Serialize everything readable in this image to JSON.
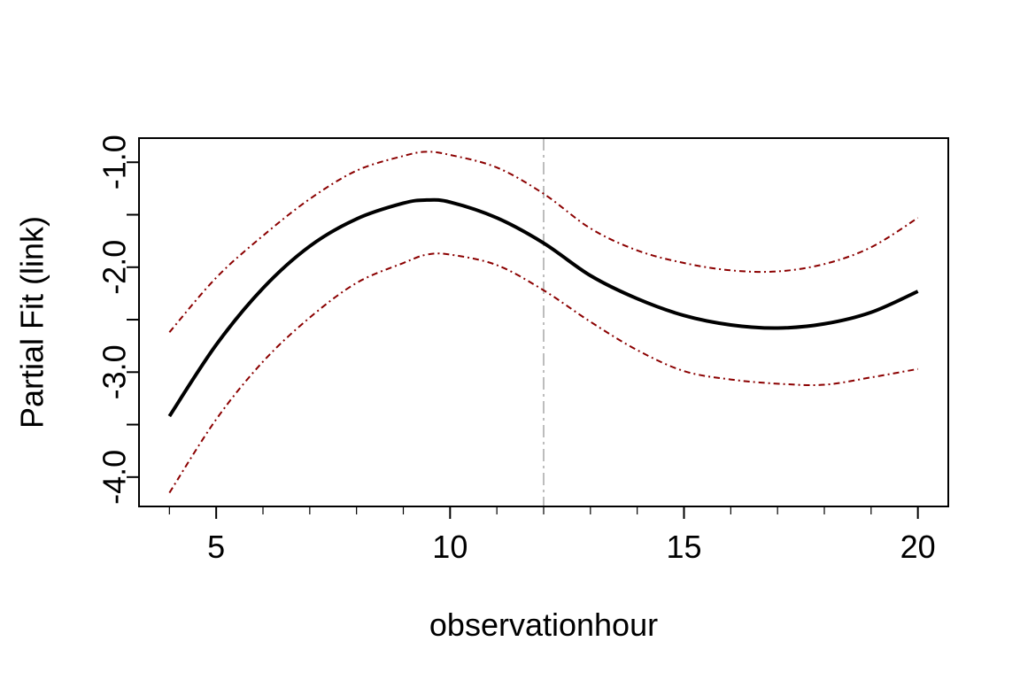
{
  "chart_data": {
    "type": "line",
    "title": "",
    "xlabel": "observationhour",
    "ylabel": "Partial Fit (link)",
    "xlim": [
      3.35,
      20.65
    ],
    "ylim": [
      -4.28,
      -0.77
    ],
    "x_ticks_major": [
      5,
      10,
      15,
      20
    ],
    "x_tick_labels": [
      "5",
      "10",
      "15",
      "20"
    ],
    "x_ticks_minor": [
      4,
      6,
      7,
      8,
      9,
      11,
      12,
      13,
      14,
      16,
      17,
      18,
      19
    ],
    "y_ticks": [
      -4.0,
      -3.5,
      -3.0,
      -2.5,
      -2.0,
      -1.5,
      -1.0
    ],
    "y_tick_labels": [
      "-4.0",
      "",
      "-3.0",
      "",
      "-2.0",
      "",
      "-1.0"
    ],
    "reference_line": {
      "x": 12,
      "color": "#bdbdbd",
      "style": "dash-dot"
    },
    "grid": false,
    "series": [
      {
        "role": "fit",
        "color": "#000000",
        "style": "solid",
        "x": [
          4,
          5,
          6,
          7,
          8,
          9,
          9.5,
          10,
          11,
          12,
          13,
          14,
          15,
          16,
          17,
          18,
          19,
          20
        ],
        "y": [
          -3.42,
          -2.74,
          -2.2,
          -1.8,
          -1.54,
          -1.39,
          -1.36,
          -1.38,
          -1.53,
          -1.77,
          -2.08,
          -2.3,
          -2.46,
          -2.55,
          -2.58,
          -2.54,
          -2.43,
          -2.23
        ]
      },
      {
        "role": "upper",
        "color": "#8b0000",
        "style": "dash-dot",
        "x": [
          4,
          5,
          6,
          7,
          8,
          9,
          9.5,
          10,
          11,
          12,
          13,
          14,
          15,
          16,
          17,
          18,
          19,
          20
        ],
        "y": [
          -2.62,
          -2.1,
          -1.7,
          -1.35,
          -1.08,
          -0.94,
          -0.9,
          -0.93,
          -1.05,
          -1.3,
          -1.63,
          -1.84,
          -1.96,
          -2.03,
          -2.04,
          -1.97,
          -1.81,
          -1.53
        ]
      },
      {
        "role": "lower",
        "color": "#8b0000",
        "style": "dash-dot",
        "x": [
          4,
          5,
          6,
          7,
          8,
          9,
          9.5,
          10,
          11,
          12,
          13,
          14,
          15,
          16,
          17,
          18,
          19,
          20
        ],
        "y": [
          -4.15,
          -3.45,
          -2.9,
          -2.48,
          -2.15,
          -1.96,
          -1.88,
          -1.88,
          -1.98,
          -2.22,
          -2.52,
          -2.79,
          -2.99,
          -3.07,
          -3.11,
          -3.12,
          -3.05,
          -2.97
        ]
      }
    ]
  }
}
